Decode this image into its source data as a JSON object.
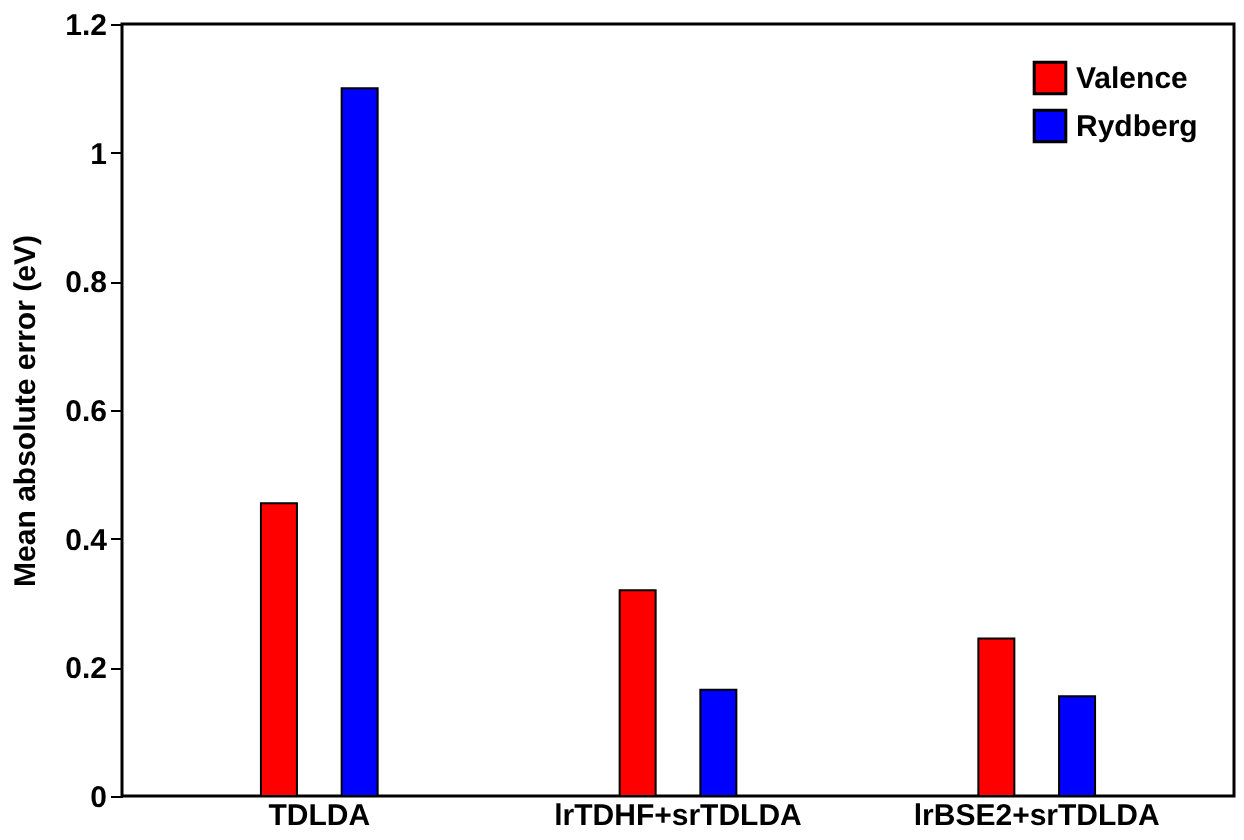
{
  "chart_data": {
    "type": "bar",
    "ylabel": "Mean absolute error (eV)",
    "categories": [
      "TDLDA",
      "lrTDHF+srTDLDA",
      "lrBSE2+srTDLDA"
    ],
    "series": [
      {
        "name": "Valence",
        "color": "#ff0000",
        "values": [
          0.455,
          0.32,
          0.245
        ]
      },
      {
        "name": "Rydberg",
        "color": "#0000ff",
        "values": [
          1.1,
          0.165,
          0.155
        ]
      }
    ],
    "ylim": [
      0,
      1.2
    ],
    "yticks": [
      0,
      0.2,
      0.4,
      0.6,
      0.8,
      1,
      1.2
    ],
    "grid": false,
    "legend": "top right"
  }
}
